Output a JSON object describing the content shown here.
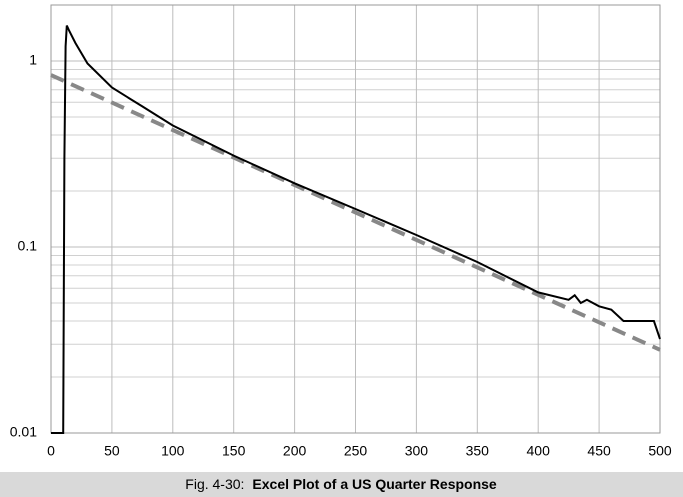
{
  "chart_data": {
    "type": "line",
    "caption_label": "Fig. 4-30:",
    "title": "Excel Plot of a US Quarter Response",
    "xlim": [
      0,
      500
    ],
    "xticks": [
      0,
      50,
      100,
      150,
      200,
      250,
      300,
      350,
      400,
      450,
      500
    ],
    "ylim": [
      0.01,
      2
    ],
    "log_y": true,
    "yticks": [
      0.01,
      0.1,
      1
    ],
    "yminor": [
      0.02,
      0.03,
      0.04,
      0.05,
      0.06,
      0.07,
      0.08,
      0.09,
      0.2,
      0.3,
      0.4,
      0.5,
      0.6,
      0.7,
      0.8,
      0.9,
      2
    ],
    "grid": true,
    "series": [
      {
        "color": "#000000",
        "dash": false,
        "x": [
          0,
          10,
          11,
          12,
          13,
          15,
          20,
          30,
          50,
          75,
          100,
          150,
          200,
          250,
          300,
          350,
          400,
          425,
          430,
          435,
          440,
          450,
          460,
          470,
          495,
          500
        ],
        "values": [
          0.01,
          0.01,
          0.3,
          1.2,
          1.55,
          1.45,
          1.25,
          0.97,
          0.72,
          0.57,
          0.45,
          0.31,
          0.22,
          0.16,
          0.116,
          0.083,
          0.057,
          0.052,
          0.055,
          0.05,
          0.052,
          0.048,
          0.046,
          0.04,
          0.04,
          0.032
        ]
      },
      {
        "color": "#888888",
        "dash": true,
        "x": [
          0,
          500
        ],
        "values": [
          0.84,
          0.028
        ]
      }
    ]
  }
}
